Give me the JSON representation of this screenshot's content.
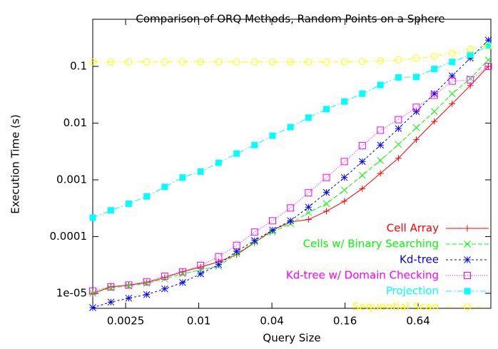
{
  "chart_data": {
    "type": "line",
    "title": "Comparison of ORQ Methods, Random Points on a Sphere",
    "xlabel": "Query Size",
    "ylabel": "Execution Time (s)",
    "xscale": "log",
    "yscale": "log",
    "legend": "lower right",
    "xlim": [
      0.00134,
      2.54
    ],
    "ylim": [
      5.44e-06,
      0.676
    ],
    "xticks": [
      0.0025,
      0.01,
      0.04,
      0.16,
      0.64
    ],
    "yticks": [
      {
        "value": 1e-05,
        "label": "1e-05"
      },
      0.0001,
      0.001,
      0.01,
      0.1
    ],
    "x": [
      0.00134,
      0.00189,
      0.00265,
      0.00373,
      0.00524,
      0.00736,
      0.01035,
      0.01456,
      0.0205,
      0.0288,
      0.0405,
      0.0569,
      0.08,
      0.1125,
      0.158,
      0.222,
      0.313,
      0.44,
      0.618,
      0.869,
      1.22,
      1.72,
      2.42
    ],
    "series": [
      {
        "name": "Cell Array",
        "color": "#ff0000",
        "marker": "plus",
        "dash": "",
        "values": [
          1e-05,
          1.3e-05,
          1.4e-05,
          1.55e-05,
          1.9e-05,
          2.4e-05,
          2.9e-05,
          3.6e-05,
          4.8e-05,
          7.8e-05,
          0.00013,
          0.00018,
          0.0002,
          0.00028,
          0.00042,
          0.0007,
          0.0013,
          0.0024,
          0.0051,
          0.0107,
          0.022,
          0.046,
          0.1
        ]
      },
      {
        "name": "Cells w/ Binary Searching",
        "color": "#00ff00",
        "marker": "cross",
        "dash": "6,3",
        "values": [
          1e-05,
          1.25e-05,
          1.35e-05,
          1.5e-05,
          1.8e-05,
          2.2e-05,
          2.6e-05,
          3e-05,
          5e-05,
          8e-05,
          0.00012,
          0.00017,
          0.000265,
          0.00038,
          0.00066,
          0.0012,
          0.0022,
          0.0042,
          0.0083,
          0.016,
          0.033,
          0.061,
          0.13
        ]
      },
      {
        "name": "Kd-tree",
        "color": "#0000ff",
        "marker": "star",
        "dash": "3,3",
        "values": [
          5.6e-06,
          7e-06,
          8.2e-06,
          9.5e-06,
          1.2e-05,
          1.55e-05,
          2.2e-05,
          3.2e-05,
          5.5e-05,
          8.5e-05,
          0.00013,
          0.00019,
          0.00033,
          0.0006,
          0.0011,
          0.0021,
          0.0041,
          0.008,
          0.016,
          0.033,
          0.068,
          0.14,
          0.29
        ]
      },
      {
        "name": "Kd-tree w/ Domain Checking",
        "color": "#ff00ff",
        "marker": "square",
        "dash": "1,2",
        "values": [
          1.1e-05,
          1.3e-05,
          1.4e-05,
          1.6e-05,
          2e-05,
          2.4e-05,
          3.1e-05,
          4.4e-05,
          7e-05,
          0.00012,
          0.00019,
          0.00032,
          0.00059,
          0.0011,
          0.0021,
          0.004,
          0.0075,
          0.0115,
          0.019,
          0.031,
          0.055,
          0.058,
          0.1
        ]
      },
      {
        "name": "Projection",
        "color": "#00ffff",
        "marker": "filled-square",
        "dash": "8,3,2,3",
        "values": [
          0.000215,
          0.00029,
          0.00038,
          0.00051,
          0.00075,
          0.0011,
          0.0014,
          0.002,
          0.0029,
          0.0041,
          0.006,
          0.0085,
          0.0125,
          0.0176,
          0.024,
          0.033,
          0.047,
          0.064,
          0.065,
          0.09,
          0.12,
          0.16,
          0.23
        ]
      },
      {
        "name": "Sequential Scan",
        "color": "#ffff00",
        "marker": "circle",
        "dash": "8,3,2,3,2,3",
        "values": [
          0.12,
          0.12,
          0.12,
          0.12,
          0.12,
          0.12,
          0.12,
          0.12,
          0.12,
          0.12,
          0.12,
          0.12,
          0.12,
          0.12,
          0.12,
          0.122,
          0.125,
          0.13,
          0.14,
          0.15,
          0.17,
          0.2,
          0.23
        ]
      }
    ]
  }
}
